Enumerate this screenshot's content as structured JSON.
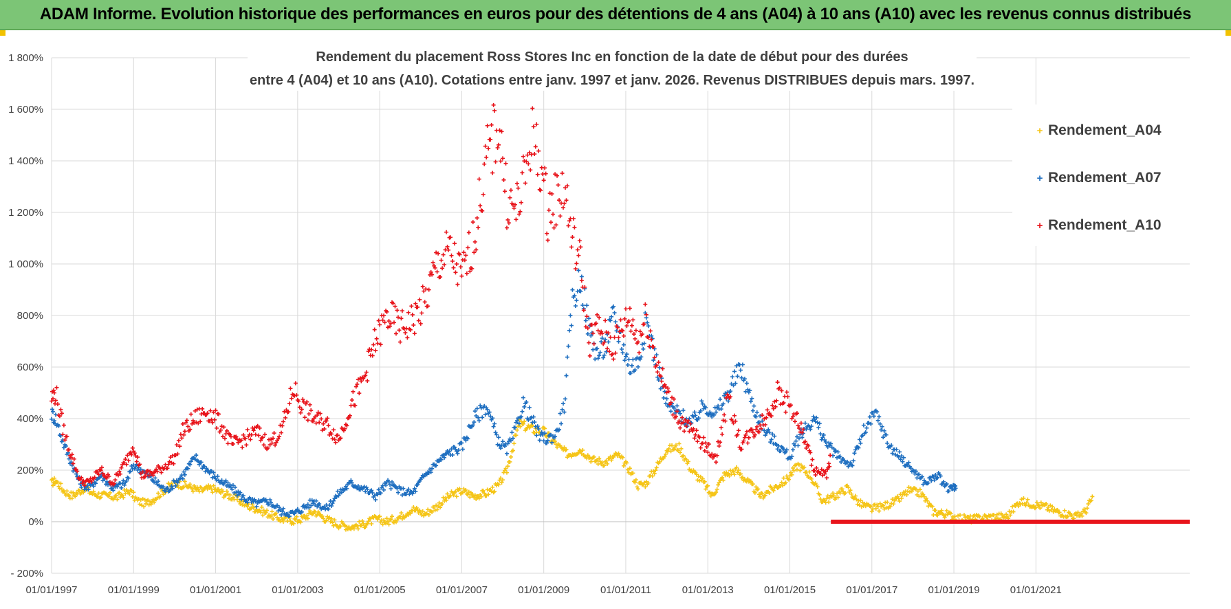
{
  "banner": {
    "title": "ADAM Informe. Evolution historique des performances en euros pour des détentions de 4 ans (A04) à 10 ans (A10) avec les revenus connus distribués"
  },
  "colors": {
    "A04": "#f5c518",
    "A07": "#1f6fc0",
    "A10": "#e8141b",
    "grid": "#d9d9d9",
    "banner": "#7cc576"
  },
  "chart_data": {
    "type": "scatter",
    "title_line1": "Rendement du placement Ross Stores Inc en fonction de la date de début pour des durées",
    "title_line2": "entre 4 (A04) et 10 ans (A10).  Cotations entre janv. 1997 et janv. 2026. Revenus DISTRIBUES depuis mars. 1997.",
    "x_start": "1997-01-01",
    "xlim_years": [
      1997.0,
      2024.75
    ],
    "ylim": [
      -200,
      1800
    ],
    "y_tick_values": [
      -200,
      0,
      200,
      400,
      600,
      800,
      1000,
      1200,
      1400,
      1600,
      1800
    ],
    "y_tick_labels": [
      "- 200%",
      "0%",
      "200%",
      "400%",
      "600%",
      "800%",
      "1 000%",
      "1 200%",
      "1 400%",
      "1 600%",
      "1 800%"
    ],
    "x_tick_values": [
      1997,
      1999,
      2001,
      2003,
      2005,
      2007,
      2009,
      2011,
      2013,
      2015,
      2017,
      2019,
      2021
    ],
    "x_tick_labels": [
      "01/01/1997",
      "01/01/1999",
      "01/01/2001",
      "01/01/2003",
      "01/01/2005",
      "01/01/2007",
      "01/01/2009",
      "01/01/2011",
      "01/01/2013",
      "01/01/2015",
      "01/01/2017",
      "01/01/2019",
      "01/01/2021"
    ],
    "legend_position": "top-right",
    "series": [
      {
        "name": "Rendement_A04",
        "key": "A04",
        "x": [
          1997.0,
          1997.1,
          1997.3,
          1997.5,
          1997.8,
          1998.0,
          1998.3,
          1998.6,
          1998.9,
          1999.1,
          1999.3,
          1999.5,
          1999.8,
          2000.0,
          2000.3,
          2000.6,
          2000.9,
          2001.2,
          2001.5,
          2001.8,
          2002.0,
          2002.3,
          2002.6,
          2002.9,
          2003.1,
          2003.4,
          2003.7,
          2004.0,
          2004.3,
          2004.6,
          2004.9,
          2005.2,
          2005.5,
          2005.8,
          2006.1,
          2006.4,
          2006.7,
          2007.0,
          2007.3,
          2007.6,
          2007.9,
          2008.1,
          2008.4,
          2008.7,
          2009.0,
          2009.3,
          2009.6,
          2009.9,
          2010.2,
          2010.5,
          2010.8,
          2011.1,
          2011.3,
          2011.5,
          2011.7,
          2012.0,
          2012.3,
          2012.6,
          2012.9,
          2013.1,
          2013.4,
          2013.7,
          2014.0,
          2014.3,
          2014.6,
          2014.9,
          2015.2,
          2015.5,
          2015.8,
          2016.1,
          2016.4,
          2016.7,
          2017.0,
          2017.3,
          2017.6,
          2017.9,
          2018.2,
          2018.5,
          2018.8,
          2019.1,
          2019.4,
          2019.7,
          2020.0,
          2020.3,
          2020.6,
          2020.9,
          2021.2,
          2021.5,
          2021.8,
          2022.0,
          2022.2,
          2022.4
        ],
        "y": [
          150,
          160,
          120,
          100,
          130,
          110,
          100,
          95,
          120,
          80,
          70,
          90,
          130,
          150,
          140,
          120,
          130,
          110,
          90,
          60,
          50,
          30,
          10,
          5,
          10,
          40,
          10,
          -10,
          -20,
          -10,
          10,
          0,
          20,
          50,
          30,
          60,
          100,
          120,
          100,
          110,
          140,
          200,
          380,
          360,
          350,
          300,
          260,
          280,
          240,
          230,
          260,
          200,
          140,
          150,
          200,
          280,
          290,
          200,
          150,
          100,
          180,
          200,
          150,
          100,
          130,
          160,
          220,
          180,
          80,
          100,
          130,
          70,
          50,
          60,
          80,
          120,
          110,
          40,
          30,
          15,
          10,
          15,
          20,
          20,
          80,
          70,
          60,
          40,
          30,
          20,
          40,
          100
        ]
      },
      {
        "name": "Rendement_A07",
        "key": "A07",
        "x": [
          1997.0,
          1997.1,
          1997.3,
          1997.5,
          1997.7,
          1997.9,
          1998.2,
          1998.5,
          1998.8,
          1999.0,
          1999.2,
          1999.5,
          1999.8,
          2000.0,
          2000.2,
          2000.5,
          2000.8,
          2001.1,
          2001.4,
          2001.7,
          2002.0,
          2002.3,
          2002.6,
          2002.9,
          2003.1,
          2003.4,
          2003.7,
          2004.0,
          2004.3,
          2004.6,
          2004.9,
          2005.2,
          2005.5,
          2005.8,
          2006.1,
          2006.4,
          2006.7,
          2007.0,
          2007.3,
          2007.6,
          2007.9,
          2008.1,
          2008.3,
          2008.5,
          2008.7,
          2008.9,
          2009.1,
          2009.3,
          2009.5,
          2009.7,
          2009.9,
          2010.1,
          2010.3,
          2010.5,
          2010.7,
          2010.9,
          2011.1,
          2011.3,
          2011.5,
          2011.7,
          2012.0,
          2012.3,
          2012.6,
          2012.9,
          2013.2,
          2013.5,
          2013.8,
          2014.1,
          2014.4,
          2014.7,
          2015.0,
          2015.3,
          2015.6,
          2015.9,
          2016.2,
          2016.5,
          2016.8,
          2017.1,
          2017.4,
          2017.7,
          2018.0,
          2018.3,
          2018.6,
          2018.9,
          2019.0,
          2019.05
        ],
        "y": [
          420,
          400,
          300,
          220,
          150,
          130,
          180,
          130,
          150,
          220,
          200,
          160,
          120,
          150,
          180,
          250,
          200,
          160,
          130,
          90,
          70,
          80,
          40,
          30,
          50,
          80,
          50,
          110,
          150,
          130,
          100,
          150,
          120,
          110,
          180,
          230,
          270,
          290,
          400,
          450,
          310,
          280,
          350,
          460,
          400,
          330,
          320,
          340,
          450,
          850,
          950,
          750,
          650,
          680,
          800,
          700,
          600,
          620,
          780,
          650,
          450,
          420,
          380,
          450,
          420,
          500,
          600,
          450,
          350,
          300,
          250,
          350,
          400,
          300,
          250,
          220,
          350,
          420,
          300,
          250,
          200,
          150,
          180,
          120,
          140,
          120
        ],
        "note": "see script for densified shape"
      },
      {
        "name": "Rendement_A10",
        "key": "A10",
        "x": [
          1997.0,
          1997.1,
          1997.3,
          1997.5,
          1997.7,
          1997.9,
          1998.2,
          1998.5,
          1998.8,
          1999.0,
          1999.2,
          1999.5,
          1999.8,
          2000.0,
          2000.2,
          2000.5,
          2000.8,
          2001.1,
          2001.4,
          2001.7,
          2002.0,
          2002.3,
          2002.6,
          2002.9,
          2003.1,
          2003.4,
          2003.7,
          2004.0,
          2004.3,
          2004.6,
          2004.9,
          2005.2,
          2005.5,
          2005.8,
          2006.1,
          2006.4,
          2006.7,
          2007.0,
          2007.3,
          2007.6,
          2007.9,
          2008.1,
          2008.3,
          2008.5,
          2008.7,
          2008.9,
          2009.1,
          2009.3,
          2009.5,
          2009.7,
          2009.9,
          2010.1,
          2010.3,
          2010.5,
          2010.7,
          2010.9,
          2011.1,
          2011.3,
          2011.5,
          2011.7,
          2012.0,
          2012.3,
          2012.6,
          2012.9,
          2013.2,
          2013.5,
          2013.8,
          2014.1,
          2014.4,
          2014.7,
          2015.0,
          2015.3,
          2015.6,
          2015.9,
          2016.0
        ],
        "y": [
          480,
          500,
          350,
          250,
          160,
          150,
          200,
          150,
          230,
          300,
          180,
          190,
          220,
          250,
          350,
          400,
          430,
          380,
          300,
          320,
          350,
          300,
          350,
          520,
          450,
          400,
          380,
          320,
          450,
          550,
          700,
          800,
          750,
          780,
          850,
          1000,
          1050,
          950,
          1100,
          1400,
          1550,
          1250,
          1200,
          1300,
          1500,
          1400,
          1200,
          1250,
          1300,
          1100,
          1000,
          700,
          750,
          720,
          680,
          750,
          800,
          700,
          800,
          650,
          500,
          400,
          350,
          300,
          250,
          480,
          300,
          350,
          400,
          500,
          450,
          350,
          200,
          180,
          250
        ],
        "zero_run": [
          2016.0,
          2024.75
        ]
      }
    ]
  },
  "legend": {
    "items": [
      {
        "label": "Rendement_A04",
        "key": "A04"
      },
      {
        "label": "Rendement_A07",
        "key": "A07"
      },
      {
        "label": "Rendement_A10",
        "key": "A10"
      }
    ]
  }
}
